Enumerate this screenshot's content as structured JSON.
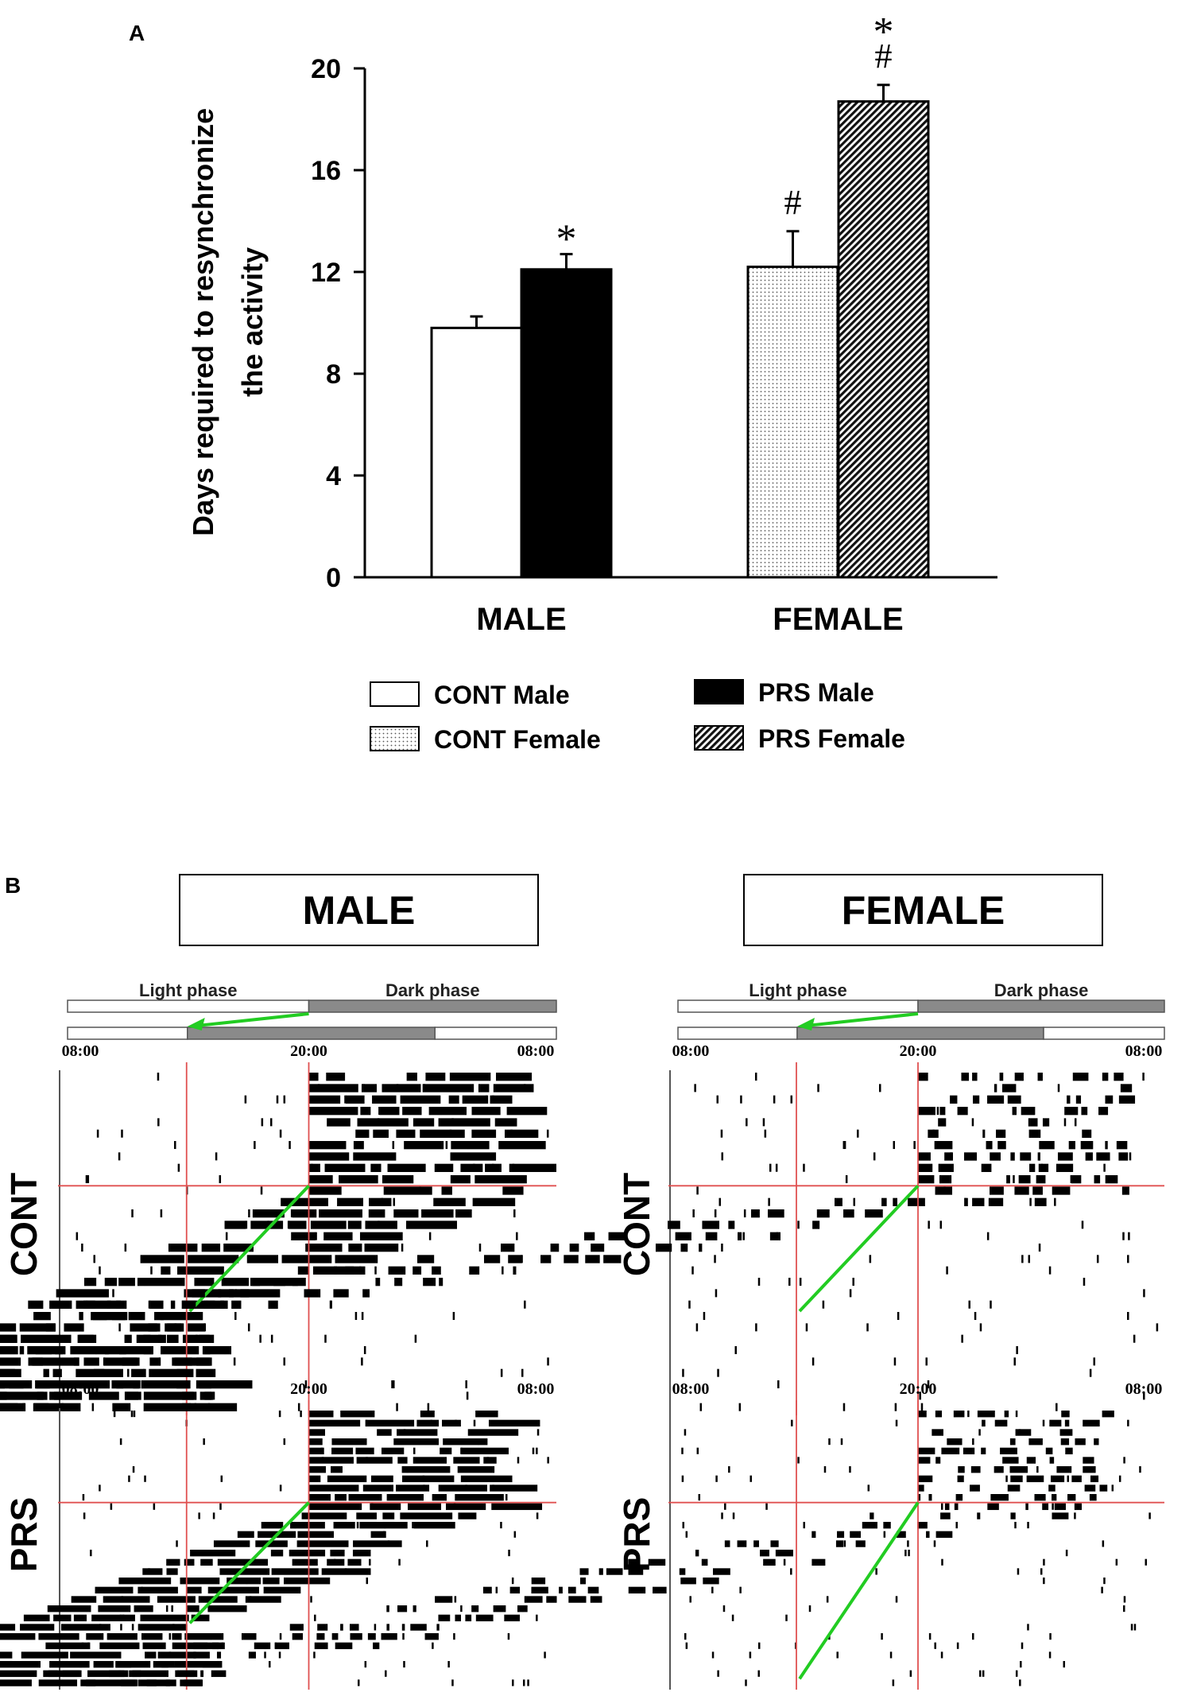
{
  "panel_a_label": "A",
  "panel_b_label": "B",
  "chart_data": {
    "type": "bar",
    "ylabel_line1": "Days required to resynchronize",
    "ylabel_line2": "the activity",
    "ylim": [
      0,
      20
    ],
    "yticks": [
      0,
      4,
      8,
      12,
      16,
      20
    ],
    "categories": [
      "MALE",
      "FEMALE"
    ],
    "series": [
      {
        "name": "CONT Male",
        "group": "MALE",
        "value": 9.8,
        "error": 0.45,
        "fill": "white",
        "annotation": []
      },
      {
        "name": "PRS Male",
        "group": "MALE",
        "value": 12.1,
        "error": 0.6,
        "fill": "black",
        "annotation": [
          "*"
        ]
      },
      {
        "name": "CONT Female",
        "group": "FEMALE",
        "value": 12.2,
        "error": 1.4,
        "fill": "dots",
        "annotation": [
          "#"
        ]
      },
      {
        "name": "PRS Female",
        "group": "FEMALE",
        "value": 18.7,
        "error": 0.65,
        "fill": "hatch",
        "annotation": [
          "#",
          "*"
        ]
      }
    ],
    "legend": [
      {
        "label": "CONT Male",
        "fill": "white"
      },
      {
        "label": "CONT Female",
        "fill": "dots"
      },
      {
        "label": "PRS Male",
        "fill": "black"
      },
      {
        "label": "PRS Female",
        "fill": "hatch"
      }
    ]
  },
  "actograms": {
    "sex_labels": {
      "male": "MALE",
      "female": "FEMALE"
    },
    "group_labels": {
      "cont": "CONT",
      "prs": "PRS"
    },
    "phase_labels": {
      "light": "Light phase",
      "dark": "Dark phase"
    },
    "time_labels": {
      "start": "08:00",
      "mid": "20:00",
      "end": "08:00"
    },
    "shift_hours": 6,
    "line_colors": {
      "reference": "#e05050",
      "shift": "#22cc22"
    }
  }
}
